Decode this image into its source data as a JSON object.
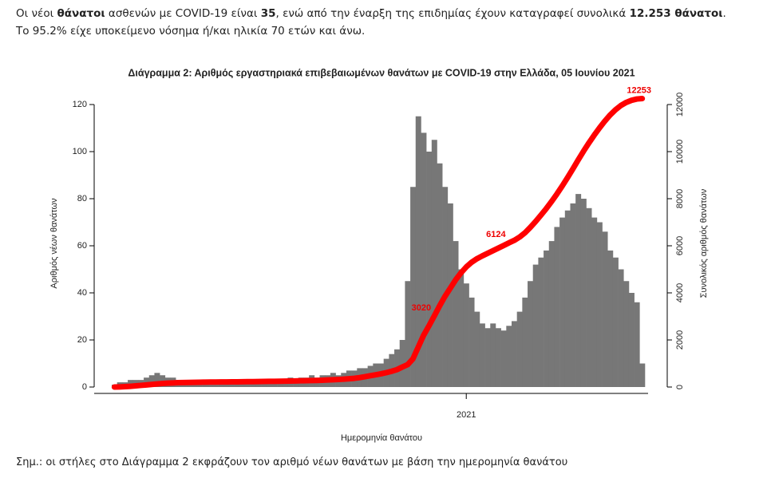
{
  "intro": [
    "Οι νέοι ",
    "θάνατοι",
    " ασθενών με COVID-19 είναι ",
    "35",
    ", ενώ από την έναρξη της επιδημίας έχουν καταγραφεί συνολικά ",
    "12.253 θάνατοι",
    ".  Το 95.2% είχε υποκείμενο νόσημα ή/και ηλικία 70 ετών και άνω."
  ],
  "chart_data": {
    "type": "bar",
    "title": "Διάγραμμα 2: Αριθμός εργαστηριακά επιβεβαιωμένων θανάτων με COVID-19 στην Ελλάδα, 05 Ιουνίου 2021",
    "x_label": "Ημερομηνία θανάτου",
    "y_label": "Αριθμός νέων θανάτων",
    "y2_label": "Συνολικός αριθμός θανάτων",
    "categories": [
      null,
      null,
      null,
      null,
      null,
      null,
      null,
      null,
      null,
      null,
      null,
      null,
      null,
      null,
      null,
      null,
      null,
      null,
      null,
      null,
      null,
      null,
      null,
      null,
      null,
      null,
      null,
      null,
      null,
      null,
      null,
      null,
      null,
      null,
      null,
      null,
      null,
      null,
      null,
      null,
      null,
      null,
      null,
      null,
      null,
      null,
      null,
      null,
      null,
      null,
      null,
      null,
      null,
      null,
      null,
      null,
      null,
      null,
      null,
      null,
      null,
      null,
      null,
      null,
      null,
      null,
      "2021",
      null,
      null,
      null,
      null,
      null,
      null,
      null,
      null,
      null,
      null,
      null,
      null,
      null,
      null,
      null,
      null,
      null,
      null,
      null,
      null,
      null,
      null,
      null,
      null,
      null,
      null,
      null,
      null,
      null,
      null,
      null,
      null,
      null
    ],
    "series": [
      {
        "name": "Νέοι θάνατοι",
        "color": "#777777",
        "values": [
          1,
          2,
          2,
          3,
          3,
          3,
          4,
          5,
          6,
          5,
          4,
          4,
          3,
          3,
          2,
          2,
          2,
          2,
          1,
          1,
          2,
          2,
          2,
          3,
          2,
          2,
          3,
          3,
          2,
          3,
          3,
          3,
          3,
          4,
          3,
          4,
          4,
          5,
          4,
          5,
          5,
          6,
          5,
          6,
          7,
          7,
          8,
          8,
          9,
          10,
          10,
          12,
          14,
          16,
          20,
          45,
          85,
          115,
          108,
          100,
          105,
          95,
          85,
          78,
          62,
          50,
          44,
          38,
          32,
          27,
          25,
          27,
          25,
          24,
          26,
          28,
          32,
          38,
          45,
          52,
          55,
          58,
          62,
          68,
          72,
          75,
          78,
          82,
          80,
          76,
          72,
          70,
          66,
          58,
          55,
          50,
          45,
          40,
          36,
          10
        ]
      },
      {
        "name": "Συνολικοί θάνατοι",
        "color": "#ff0000",
        "axis": "y2",
        "values": [
          0,
          5,
          15,
          30,
          50,
          70,
          90,
          110,
          130,
          150,
          165,
          175,
          185,
          190,
          195,
          200,
          205,
          208,
          210,
          212,
          215,
          218,
          220,
          222,
          225,
          228,
          230,
          233,
          236,
          240,
          243,
          246,
          250,
          255,
          260,
          265,
          270,
          275,
          280,
          290,
          300,
          310,
          320,
          335,
          350,
          370,
          400,
          440,
          480,
          520,
          560,
          610,
          670,
          740,
          850,
          950,
          1200,
          1700,
          2200,
          2600,
          3020,
          3450,
          3850,
          4200,
          4550,
          4850,
          5100,
          5300,
          5450,
          5570,
          5680,
          5790,
          5900,
          6010,
          6124,
          6230,
          6370,
          6550,
          6780,
          7030,
          7300,
          7580,
          7880,
          8200,
          8540,
          8900,
          9270,
          9650,
          10020,
          10370,
          10700,
          11010,
          11300,
          11560,
          11780,
          11960,
          12090,
          12180,
          12235,
          12253
        ],
        "value_labels": [
          null,
          null,
          null,
          null,
          null,
          null,
          null,
          null,
          null,
          null,
          null,
          null,
          null,
          null,
          null,
          null,
          null,
          null,
          null,
          null,
          null,
          null,
          null,
          null,
          null,
          null,
          null,
          null,
          null,
          null,
          null,
          null,
          null,
          null,
          null,
          null,
          null,
          null,
          null,
          null,
          null,
          null,
          null,
          null,
          null,
          null,
          null,
          null,
          null,
          null,
          null,
          null,
          null,
          null,
          null,
          null,
          null,
          null,
          null,
          null,
          "3020",
          null,
          null,
          null,
          null,
          null,
          null,
          null,
          null,
          null,
          null,
          null,
          null,
          null,
          "6124",
          null,
          null,
          null,
          null,
          null,
          null,
          null,
          null,
          null,
          null,
          null,
          null,
          null,
          null,
          null,
          null,
          null,
          null,
          null,
          null,
          null,
          null,
          null,
          null,
          "12253"
        ]
      }
    ],
    "ylim": [
      0,
      120
    ],
    "yticks": [
      0,
      20,
      40,
      60,
      80,
      100,
      120
    ],
    "y2lim": [
      0,
      12000
    ],
    "y2ticks": [
      0,
      2000,
      4000,
      6000,
      8000,
      10000,
      12000
    ]
  },
  "footnote": "Σημ.: οι στήλες στο Διάγραμμα 2 εκφράζουν τον αριθμό νέων θανάτων με βάση την ημερομηνία θανάτου"
}
